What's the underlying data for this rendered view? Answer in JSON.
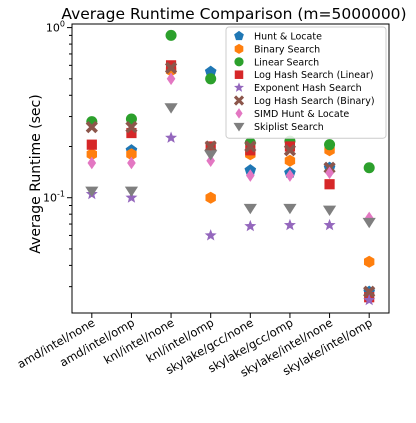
{
  "chart_data": {
    "type": "scatter",
    "title": "Average Runtime Comparison (m=5000000)",
    "ylabel": "Average Runtime (sec)",
    "xlabel": "",
    "yscale": "log",
    "ylim": [
      0.021,
      1.05
    ],
    "yticks": [
      {
        "value": 1,
        "label": "10^0"
      },
      {
        "value": 0.1,
        "label": "10^-1"
      }
    ],
    "grid": false,
    "legend_position": "top-right",
    "categories": [
      "amd/intel/none",
      "amd/intel/omp",
      "knl/intel/none",
      "knl/intel/omp",
      "skylake/gcc/none",
      "skylake/gcc/omp",
      "skylake/intel/none",
      "skylake/intel/omp"
    ],
    "series": [
      {
        "name": "Hunt & Locate",
        "marker": "pentagon",
        "color": "#1f77b4",
        "values": [
          null,
          0.19,
          null,
          0.55,
          0.145,
          0.14,
          0.15,
          0.028
        ]
      },
      {
        "name": "Binary Search",
        "marker": "hexagon",
        "color": "#ff7f0e",
        "values": [
          0.18,
          0.18,
          0.56,
          0.1,
          0.18,
          0.165,
          0.19,
          0.042
        ]
      },
      {
        "name": "Linear Search",
        "marker": "circle",
        "color": "#2ca02c",
        "values": [
          0.28,
          0.29,
          0.9,
          0.5,
          0.21,
          0.215,
          0.205,
          0.15
        ]
      },
      {
        "name": "Log Hash Search (Linear)",
        "marker": "square",
        "color": "#d62728",
        "values": [
          0.205,
          0.24,
          0.6,
          0.2,
          0.19,
          0.2,
          0.12,
          0.026
        ]
      },
      {
        "name": "Exponent Hash Search",
        "marker": "star",
        "color": "#9467bd",
        "values": [
          0.105,
          0.1,
          0.225,
          0.06,
          0.068,
          0.069,
          0.069,
          0.025
        ]
      },
      {
        "name": "Log Hash Search (Binary)",
        "marker": "x",
        "color": "#8c564b",
        "values": [
          0.26,
          0.26,
          0.58,
          0.2,
          0.2,
          0.19,
          0.15,
          0.028
        ]
      },
      {
        "name": "SIMD Hunt & Locate",
        "marker": "diamond",
        "color": "#e377c2",
        "values": [
          0.16,
          0.16,
          0.5,
          0.165,
          0.135,
          0.135,
          0.14,
          0.076
        ]
      },
      {
        "name": "Skiplist Search",
        "marker": "triangle-down",
        "color": "#7f7f7f",
        "values": [
          0.11,
          0.11,
          0.34,
          0.18,
          0.087,
          0.087,
          0.085,
          0.072
        ]
      }
    ]
  }
}
